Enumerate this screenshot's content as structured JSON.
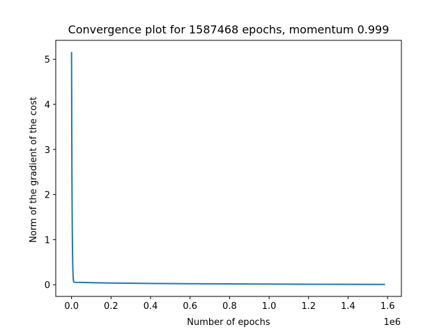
{
  "chart_data": {
    "type": "line",
    "title": "Convergence plot for 1587468 epochs, momentum 0.999",
    "xlabel": "Number of epochs",
    "ylabel": "Norm of the gradient of the cost",
    "x_offset_label": "1e6",
    "x_scale": 1000000,
    "xlim": [
      -0.08,
      1.67
    ],
    "ylim": [
      -0.26,
      5.42
    ],
    "x_ticks": [
      0.0,
      0.2,
      0.4,
      0.6,
      0.8,
      1.0,
      1.2,
      1.4,
      1.6
    ],
    "x_tick_labels": [
      "0.0",
      "0.2",
      "0.4",
      "0.6",
      "0.8",
      "1.0",
      "1.2",
      "1.4",
      "1.6"
    ],
    "y_ticks": [
      0,
      1,
      2,
      3,
      4,
      5
    ],
    "y_tick_labels": [
      "0",
      "1",
      "2",
      "3",
      "4",
      "5"
    ],
    "grid": false,
    "series": [
      {
        "color": "#1f77b4",
        "x": [
          0,
          500,
          1000,
          2000,
          3000,
          4000,
          5000,
          6000,
          7000,
          8000,
          9000,
          10000,
          12000,
          15000,
          20000,
          50000,
          100000,
          200000,
          400000,
          600000,
          800000,
          1000000,
          1200000,
          1400000,
          1587468
        ],
        "y": [
          5.16,
          4.3,
          3.5,
          2.4,
          1.65,
          1.1,
          0.72,
          0.46,
          0.3,
          0.18,
          0.11,
          0.075,
          0.06,
          0.055,
          0.053,
          0.05,
          0.045,
          0.037,
          0.028,
          0.022,
          0.018,
          0.014,
          0.011,
          0.009,
          0.007
        ]
      }
    ]
  }
}
